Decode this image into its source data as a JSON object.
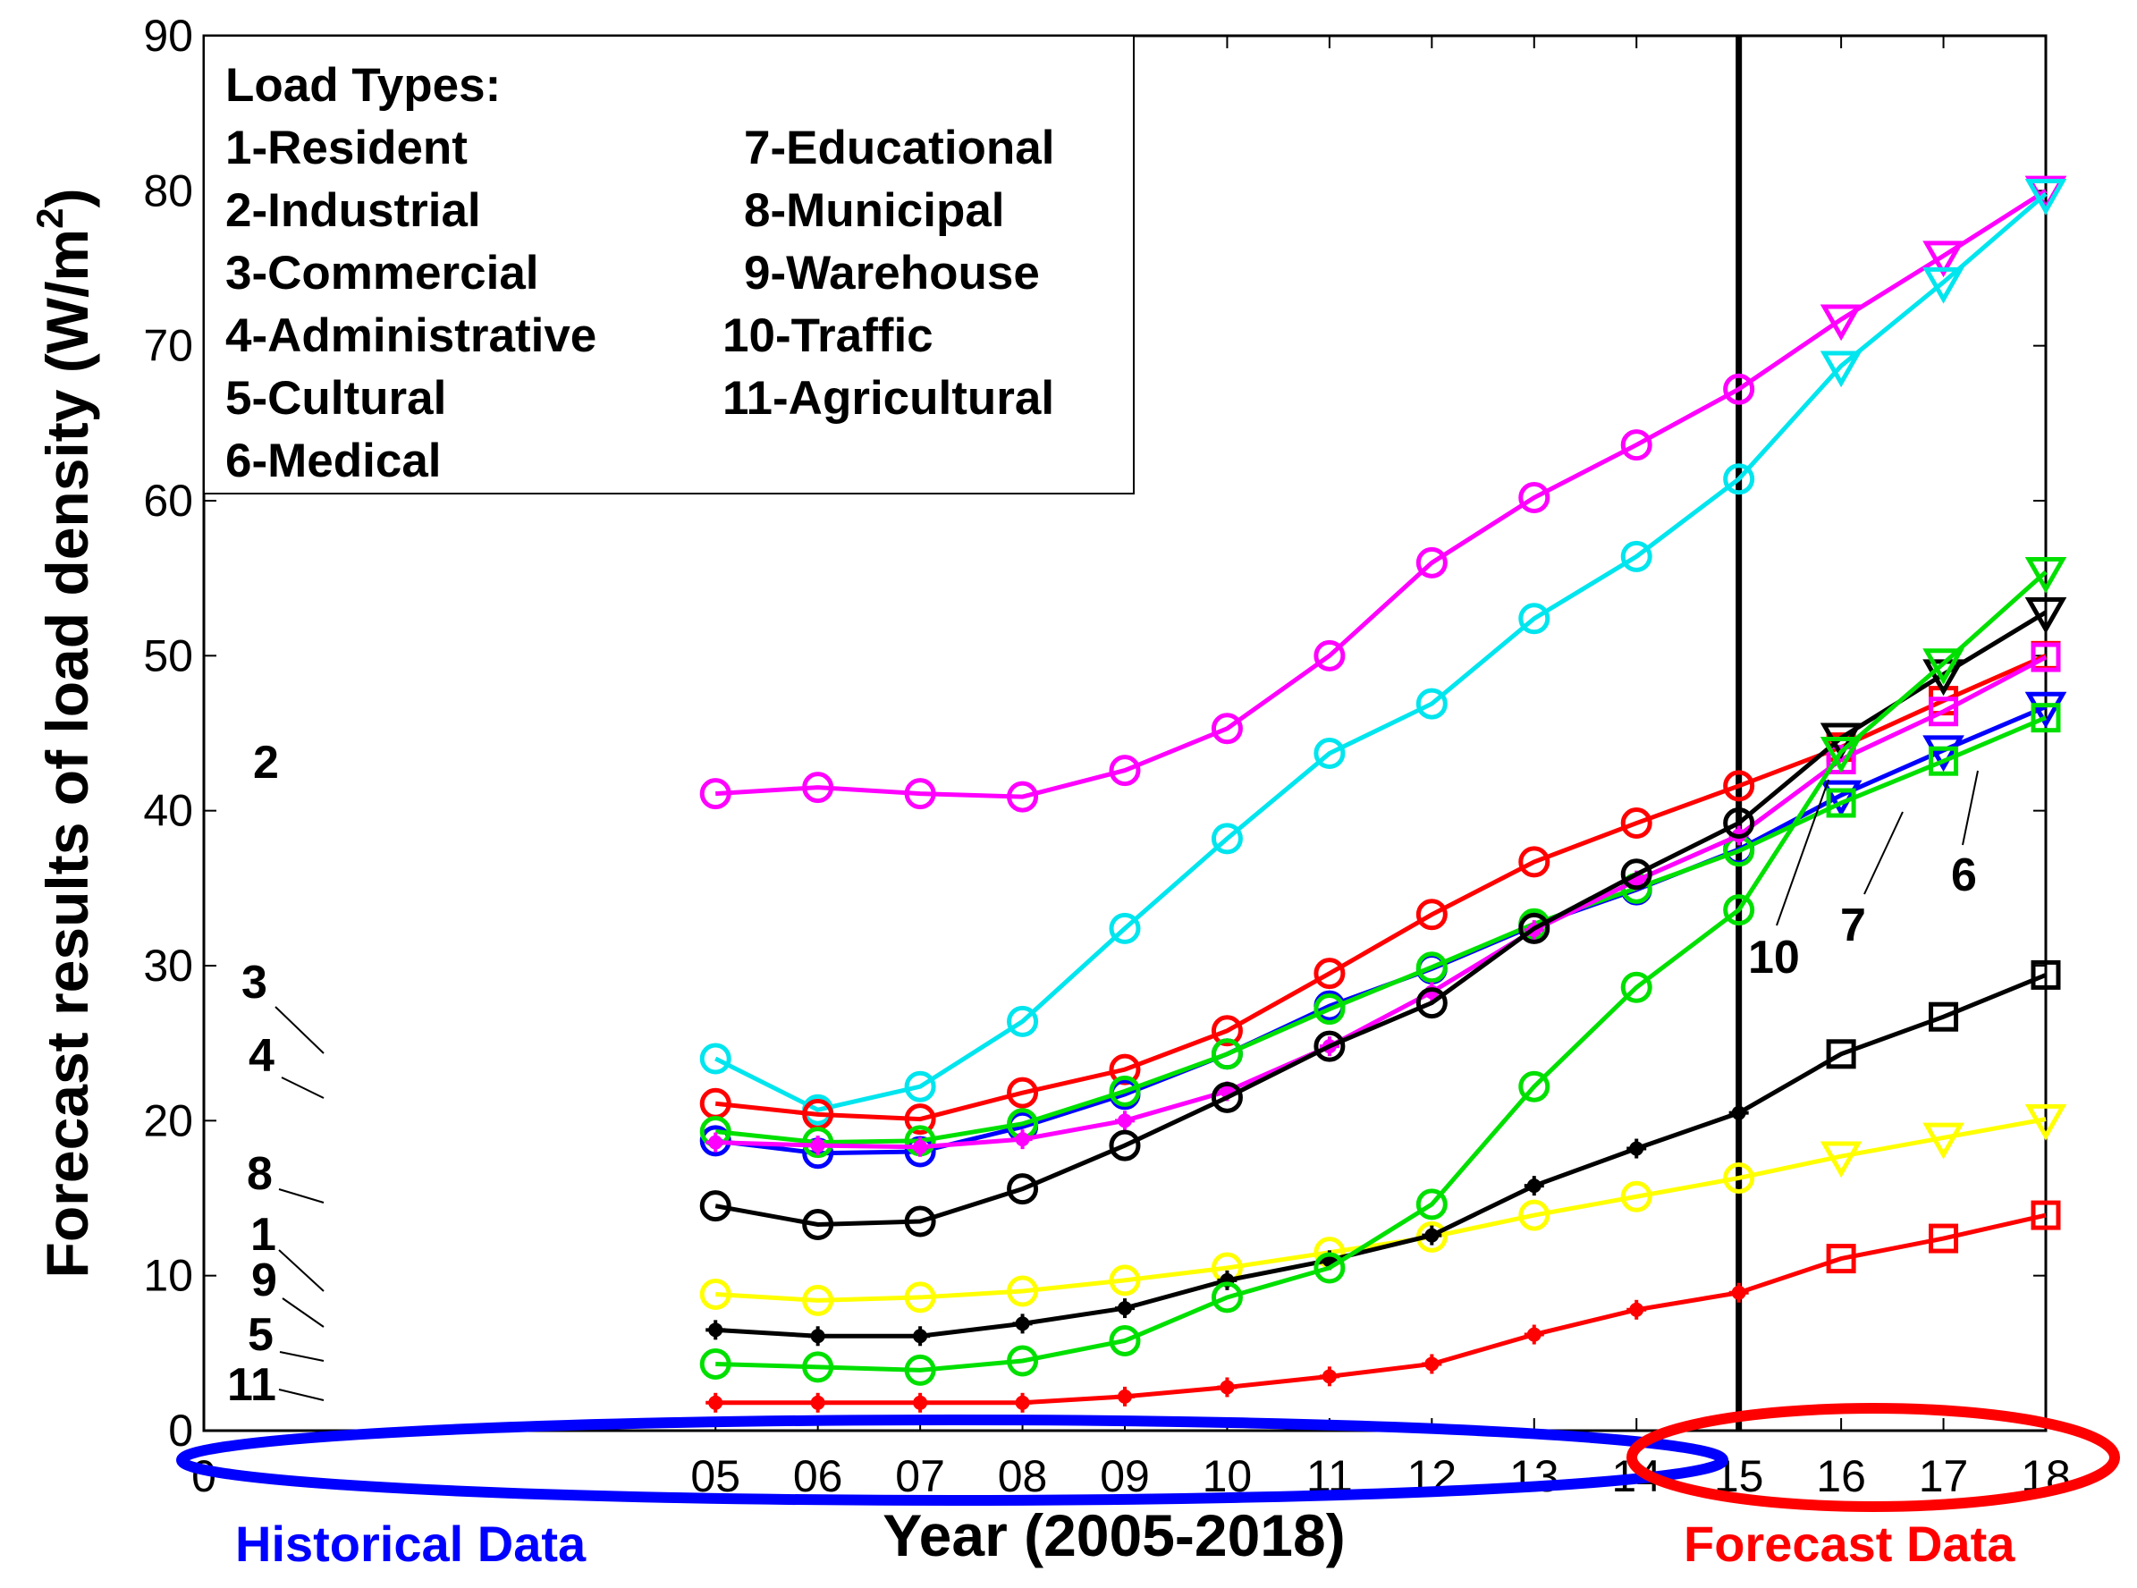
{
  "chart_data": {
    "type": "line",
    "title": "",
    "xlabel": "Year (2005-2018)",
    "ylabel": "Forecast results of load density  (W/m2)",
    "ylabel_main": "Forecast results of load density  (W/m",
    "ylabel_sup": "2",
    "ylabel_close": ")",
    "xlim": [
      0,
      18
    ],
    "ylim": [
      0,
      90
    ],
    "x_ticks": [
      0,
      5,
      6,
      7,
      8,
      9,
      10,
      11,
      12,
      13,
      14,
      15,
      16,
      17,
      18
    ],
    "x_tick_labels": [
      "0",
      "05",
      "06",
      "07",
      "08",
      "09",
      "10",
      "11",
      "12",
      "13",
      "14",
      "15",
      "16",
      "17",
      "18"
    ],
    "y_ticks": [
      0,
      10,
      20,
      30,
      40,
      50,
      60,
      70,
      80,
      90
    ],
    "y_tick_labels": [
      "0",
      "10",
      "20",
      "30",
      "40",
      "50",
      "60",
      "70",
      "80",
      "90"
    ],
    "x": [
      5,
      6,
      7,
      8,
      9,
      10,
      11,
      12,
      13,
      14,
      15,
      16,
      17,
      18
    ],
    "forecast_start_year": 15,
    "legend": {
      "title": "Load Types:",
      "col1": [
        "1-Resident",
        "2-Industrial",
        "3-Commercial",
        "4-Administrative",
        "5-Cultural",
        "6-Medical"
      ],
      "col2": [
        "7-Educational",
        "8-Municipal",
        "9-Warehouse",
        "10-Traffic",
        "11-Agricultural"
      ],
      "placement": "top-left"
    },
    "series": [
      {
        "name": "2-Industrial",
        "color": "#ff00ff",
        "historical": [
          41.1,
          41.5,
          41.1,
          40.9,
          42.6,
          45.3,
          50.0,
          56.0,
          60.2,
          63.6,
          67.2
        ],
        "forecast": [
          71.7,
          75.8,
          80.0
        ],
        "hist_marker": "circle",
        "fc_marker": "triangle"
      },
      {
        "name": "3-Commercial",
        "color": "#00e5ee",
        "historical": [
          24.0,
          20.7,
          22.2,
          26.4,
          32.4,
          38.2,
          43.7,
          46.9,
          52.4,
          56.4,
          61.4
        ],
        "forecast": [
          68.7,
          74.1,
          79.8
        ],
        "hist_marker": "circle",
        "fc_marker": "triangle"
      },
      {
        "name": "4-Administrative",
        "color": "#ff0000",
        "historical": [
          21.1,
          20.4,
          20.1,
          21.8,
          23.3,
          25.8,
          29.5,
          33.3,
          36.7,
          39.2,
          41.6
        ],
        "forecast": [
          44.1,
          47.1,
          50.0
        ],
        "hist_marker": "circle",
        "fc_marker": "square"
      },
      {
        "name": "6-Medical",
        "color": "#0000ff",
        "historical": [
          18.7,
          17.9,
          18.0,
          19.6,
          21.7,
          24.3,
          27.4,
          29.8,
          32.6,
          34.9,
          37.5
        ],
        "forecast": [
          41.0,
          43.9,
          46.7
        ],
        "hist_marker": "circle",
        "fc_marker": "triangle"
      },
      {
        "name": "7-Educational",
        "color": "#00e000",
        "historical": [
          19.3,
          18.6,
          18.7,
          19.8,
          21.9,
          24.3,
          27.2,
          29.9,
          32.7,
          35.0,
          37.4
        ],
        "forecast": [
          40.5,
          43.2,
          46.0
        ],
        "hist_marker": "circle",
        "fc_marker": "square"
      },
      {
        "name": "10-Traffic",
        "color": "#ff00ff",
        "historical": [
          18.6,
          18.4,
          18.3,
          18.8,
          20.0,
          21.9,
          24.8,
          28.3,
          32.3,
          35.5,
          38.4
        ],
        "forecast": [
          43.3,
          46.4,
          49.9
        ],
        "hist_marker": "plus",
        "fc_marker": "square"
      },
      {
        "name": "8-Municipal",
        "color": "#000000",
        "historical": [
          14.5,
          13.3,
          13.5,
          15.6,
          18.4,
          21.5,
          24.8,
          27.6,
          32.4,
          35.9,
          39.2
        ],
        "forecast": [
          44.7,
          48.8,
          52.8
        ],
        "hist_marker": "circle",
        "fc_marker": "triangle"
      },
      {
        "name": "1-Resident",
        "color": "#ffff00",
        "historical": [
          8.8,
          8.4,
          8.6,
          9.0,
          9.7,
          10.5,
          11.5,
          12.5,
          13.9,
          15.1,
          16.3
        ],
        "forecast": [
          17.7,
          18.9,
          20.1
        ],
        "hist_marker": "circle",
        "fc_marker": "triangle"
      },
      {
        "name": "9-Warehouse",
        "color": "#000000",
        "historical": [
          6.5,
          6.1,
          6.1,
          6.9,
          7.9,
          9.7,
          11.0,
          12.6,
          15.8,
          18.2,
          20.5
        ],
        "forecast": [
          24.3,
          26.7,
          29.4
        ],
        "hist_marker": "plus",
        "fc_marker": "square"
      },
      {
        "name": "5-Cultural",
        "color": "#00e000",
        "historical": [
          4.3,
          4.1,
          3.9,
          4.5,
          5.8,
          8.6,
          10.5,
          14.6,
          22.2,
          28.6,
          33.6
        ],
        "forecast": [
          43.8,
          49.5,
          55.4
        ],
        "hist_marker": "circle",
        "fc_marker": "triangle"
      },
      {
        "name": "11-Agricultural",
        "color": "#ff0000",
        "historical": [
          1.8,
          1.8,
          1.8,
          1.8,
          2.2,
          2.8,
          3.5,
          4.3,
          6.2,
          7.8,
          8.9
        ],
        "forecast": [
          11.1,
          12.4,
          13.9
        ],
        "hist_marker": "plus",
        "fc_marker": "square"
      }
    ],
    "curve_labels": [
      {
        "text": "2",
        "series": "2-Industrial"
      },
      {
        "text": "3",
        "series": "3-Commercial"
      },
      {
        "text": "4",
        "series": "4-Administrative"
      },
      {
        "text": "8",
        "series": "8-Municipal"
      },
      {
        "text": "1",
        "series": "1-Resident"
      },
      {
        "text": "9",
        "series": "9-Warehouse"
      },
      {
        "text": "5",
        "series": "5-Cultural"
      },
      {
        "text": "11",
        "series": "11-Agricultural"
      },
      {
        "text": "10",
        "series": "10-Traffic"
      },
      {
        "text": "7",
        "series": "7-Educational"
      },
      {
        "text": "6",
        "series": "6-Medical"
      }
    ],
    "annotations": {
      "historical_label": "Historical Data",
      "forecast_label": "Forecast Data",
      "historical_color": "#0000ff",
      "forecast_color": "#ff0000"
    }
  }
}
